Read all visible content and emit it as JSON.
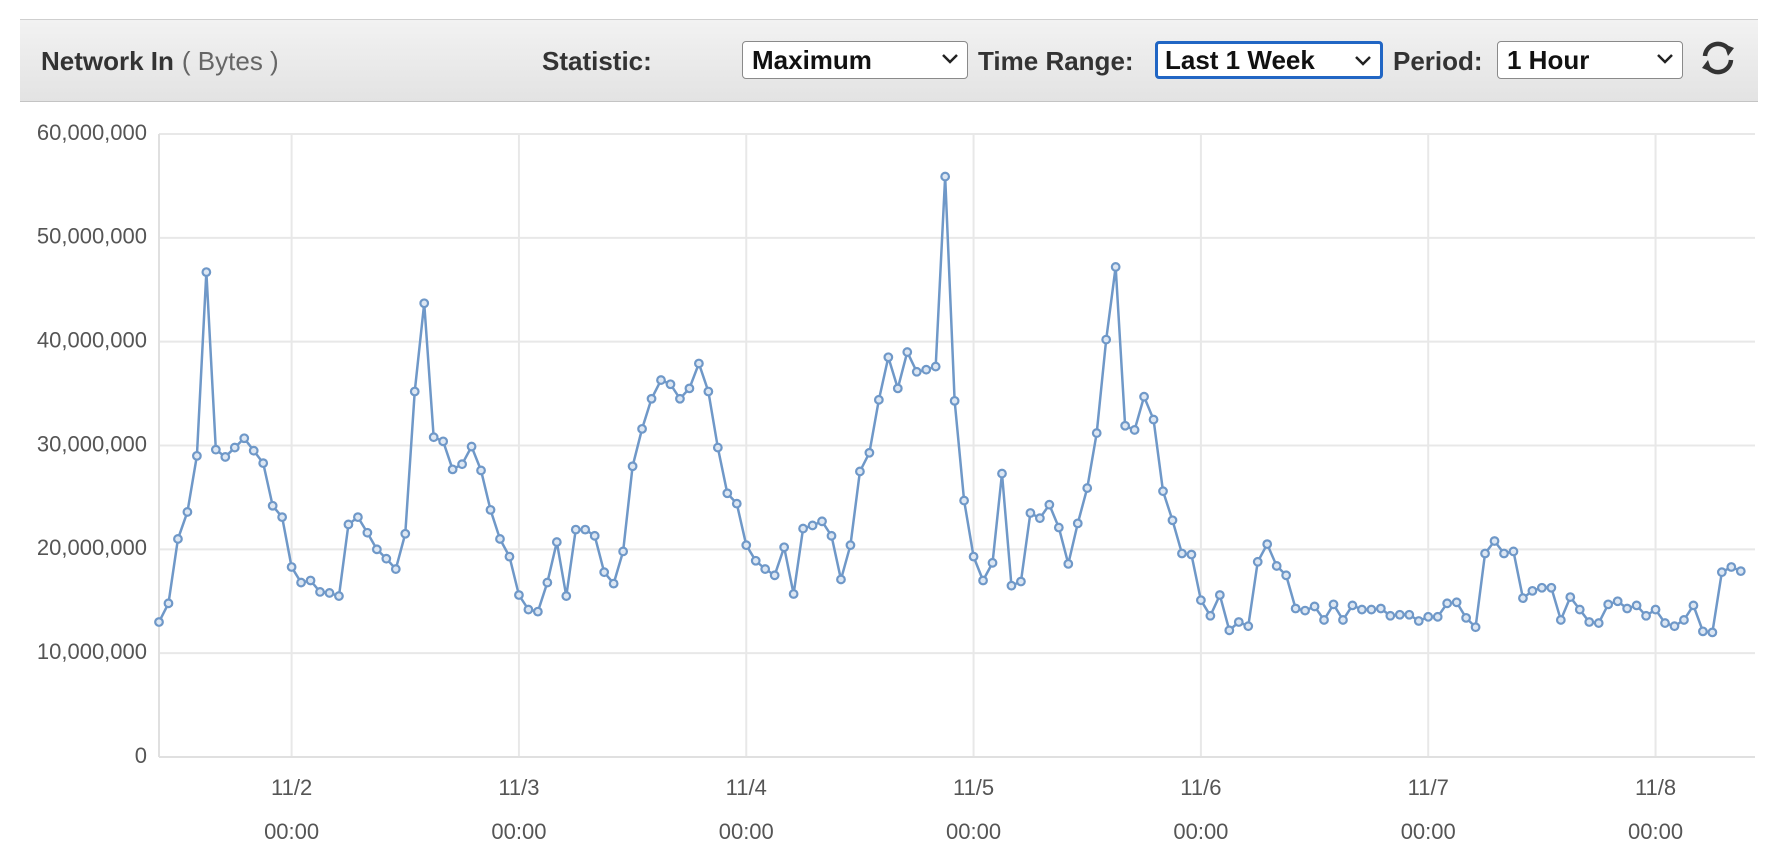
{
  "header": {
    "title": "Network In",
    "unit": "( Bytes )",
    "controls": [
      {
        "label": "Statistic:",
        "value": "Maximum"
      },
      {
        "label": "Time Range:",
        "value": "Last 1 Week"
      },
      {
        "label": "Period:",
        "value": "1 Hour"
      }
    ]
  },
  "chart_data": {
    "type": "line",
    "x": [
      -14,
      -13,
      -12,
      -11,
      -10,
      -9,
      -8,
      -7,
      -6,
      -5,
      -4,
      -3,
      -2,
      -1,
      0,
      1,
      2,
      3,
      4,
      5,
      6,
      7,
      8,
      9,
      10,
      11,
      12,
      13,
      14,
      15,
      16,
      17,
      18,
      19,
      20,
      21,
      22,
      23,
      24,
      25,
      26,
      27,
      28,
      29,
      30,
      31,
      32,
      33,
      34,
      35,
      36,
      37,
      38,
      39,
      40,
      41,
      42,
      43,
      44,
      45,
      46,
      47,
      48,
      49,
      50,
      51,
      52,
      53,
      54,
      55,
      56,
      57,
      58,
      59,
      60,
      61,
      62,
      63,
      64,
      65,
      66,
      67,
      68,
      69,
      70,
      71,
      72,
      73,
      74,
      75,
      76,
      77,
      78,
      79,
      80,
      81,
      82,
      83,
      84,
      85,
      86,
      87,
      88,
      89,
      90,
      91,
      92,
      93,
      94,
      95,
      96,
      97,
      98,
      99,
      100,
      101,
      102,
      103,
      104,
      105,
      106,
      107,
      108,
      109,
      110,
      111,
      112,
      113,
      114,
      115,
      116,
      117,
      118,
      119,
      120,
      121,
      122,
      123,
      124,
      125,
      126,
      127,
      128,
      129,
      130,
      131,
      132,
      133,
      134,
      135,
      136,
      137,
      138,
      139,
      140,
      141,
      142,
      143,
      144,
      145,
      146,
      147,
      148,
      149,
      150,
      151,
      152,
      153
    ],
    "series": [
      {
        "color": "#6f98c8",
        "values": [
          13000000,
          14800000,
          21000000,
          23600000,
          29000000,
          46700000,
          29600000,
          28900000,
          29800000,
          30700000,
          29500000,
          28300000,
          24200000,
          23100000,
          18300000,
          16800000,
          17000000,
          15900000,
          15800000,
          15500000,
          22400000,
          23100000,
          21600000,
          20000000,
          19100000,
          18100000,
          21500000,
          35200000,
          43700000,
          30800000,
          30400000,
          27700000,
          28200000,
          29900000,
          27600000,
          23800000,
          21000000,
          19300000,
          15600000,
          14200000,
          14000000,
          16800000,
          20700000,
          15500000,
          21900000,
          21900000,
          21300000,
          17800000,
          16700000,
          19800000,
          28000000,
          31600000,
          34500000,
          36300000,
          35900000,
          34500000,
          35500000,
          37900000,
          35200000,
          29800000,
          25400000,
          24400000,
          20400000,
          18900000,
          18100000,
          17500000,
          20200000,
          15700000,
          22000000,
          22300000,
          22700000,
          21300000,
          17100000,
          20400000,
          27500000,
          29300000,
          34400000,
          38500000,
          35500000,
          39000000,
          37100000,
          37300000,
          37600000,
          55900000,
          34300000,
          24700000,
          19300000,
          17000000,
          18700000,
          27300000,
          16500000,
          16900000,
          23500000,
          23000000,
          24300000,
          22100000,
          18600000,
          22500000,
          25900000,
          31200000,
          40200000,
          47200000,
          31900000,
          31500000,
          34700000,
          32500000,
          25600000,
          22800000,
          19600000,
          19500000,
          15100000,
          13600000,
          15600000,
          12200000,
          13000000,
          12600000,
          18800000,
          20500000,
          18400000,
          17500000,
          14300000,
          14100000,
          14500000,
          13200000,
          14700000,
          13200000,
          14600000,
          14200000,
          14200000,
          14300000,
          13600000,
          13700000,
          13700000,
          13100000,
          13500000,
          13500000,
          14800000,
          14900000,
          13400000,
          12500000,
          19600000,
          20800000,
          19600000,
          19800000,
          15300000,
          16000000,
          16300000,
          16300000,
          13200000,
          15400000,
          14200000,
          13000000,
          12900000,
          14700000,
          15000000,
          14300000,
          14600000,
          13600000,
          14200000,
          12900000,
          12600000,
          13200000,
          14600000,
          12100000,
          12000000,
          17800000,
          18300000,
          17900000
        ]
      }
    ],
    "xlim": [
      -14,
      154.5
    ],
    "xticks": [
      {
        "value": 0,
        "label": "11/2",
        "sublabel": "00:00"
      },
      {
        "value": 24,
        "label": "11/3",
        "sublabel": "00:00"
      },
      {
        "value": 48,
        "label": "11/4",
        "sublabel": "00:00"
      },
      {
        "value": 72,
        "label": "11/5",
        "sublabel": "00:00"
      },
      {
        "value": 96,
        "label": "11/6",
        "sublabel": "00:00"
      },
      {
        "value": 120,
        "label": "11/7",
        "sublabel": "00:00"
      },
      {
        "value": 144,
        "label": "11/8",
        "sublabel": "00:00"
      }
    ],
    "ylim": [
      0,
      60000000
    ],
    "yticks": [
      0,
      {
        "value": 10000000,
        "label": "10,000,000"
      },
      {
        "value": 20000000,
        "label": "20,000,000"
      },
      {
        "value": 30000000,
        "label": "30,000,000"
      },
      {
        "value": 40000000,
        "label": "40,000,000"
      },
      {
        "value": 50000000,
        "label": "50,000,000"
      },
      {
        "value": 60000000,
        "label": "60,000,000"
      }
    ],
    "grid": true
  }
}
